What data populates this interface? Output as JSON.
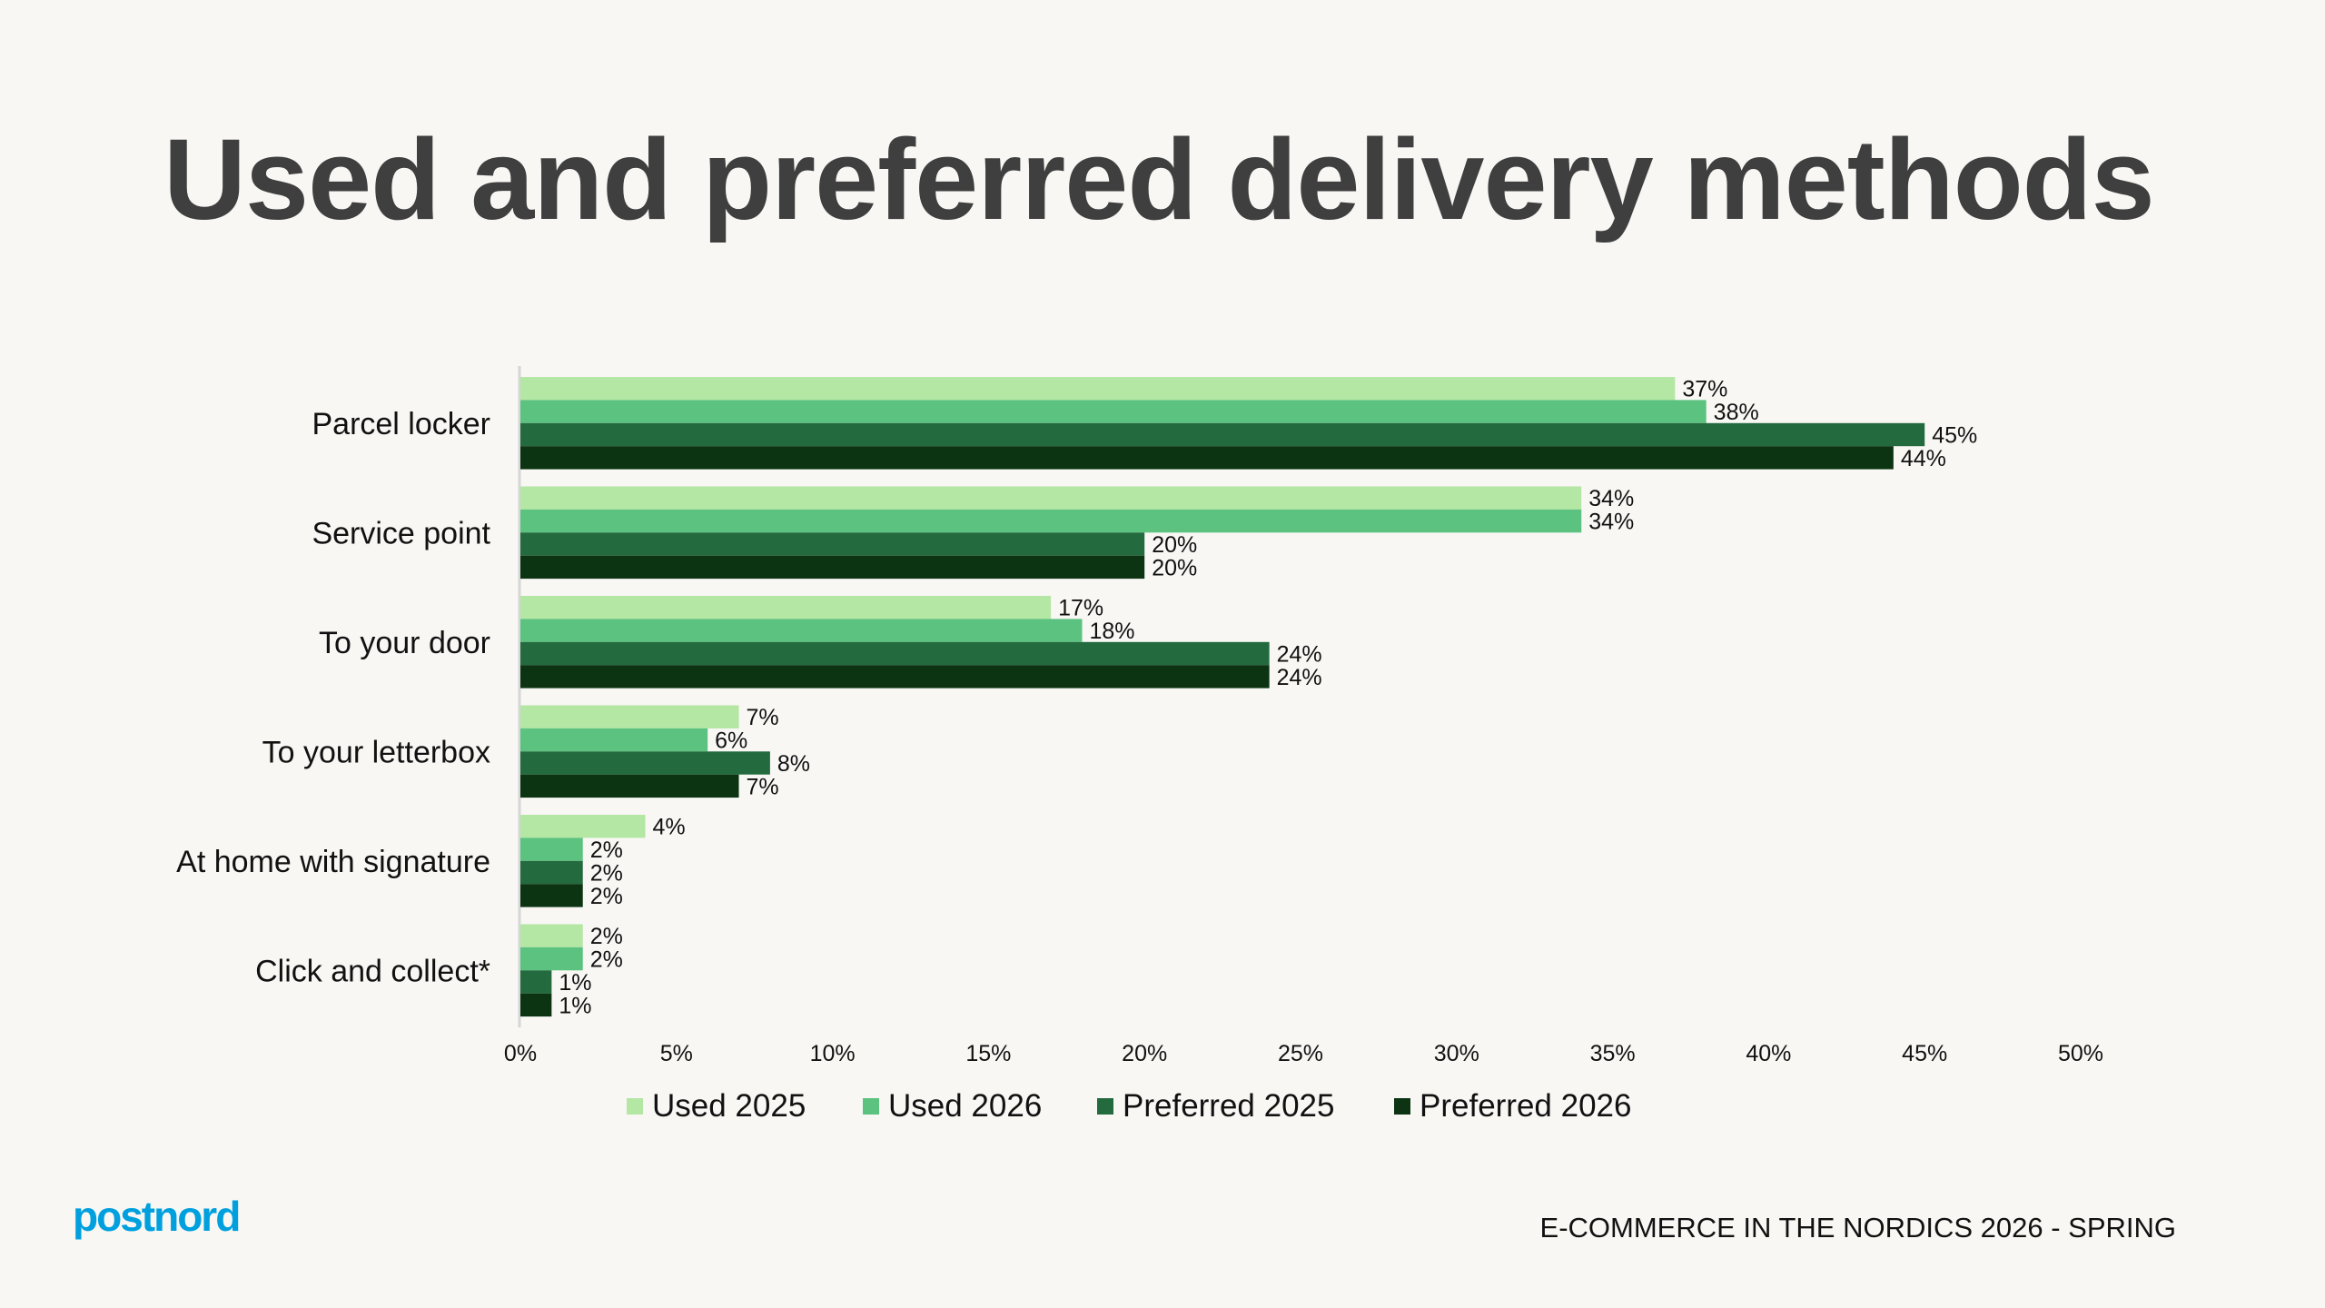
{
  "chart_data": {
    "type": "bar",
    "orientation": "horizontal",
    "title": "Used and preferred delivery methods",
    "categories": [
      "Parcel locker",
      "Service point",
      "To your door",
      "To your letterbox",
      "At home with signature",
      "Click and collect*"
    ],
    "series": [
      {
        "name": "Used 2025",
        "color": "#b4e6a4",
        "values": [
          37,
          34,
          17,
          7,
          4,
          2
        ]
      },
      {
        "name": "Used 2026",
        "color": "#5cc280",
        "values": [
          38,
          34,
          18,
          6,
          2,
          2
        ]
      },
      {
        "name": "Preferred 2025",
        "color": "#236a3f",
        "values": [
          45,
          20,
          24,
          8,
          2,
          1
        ]
      },
      {
        "name": "Preferred 2026",
        "color": "#0c3413",
        "values": [
          44,
          20,
          24,
          7,
          2,
          1
        ]
      }
    ],
    "xlim": [
      0,
      50
    ],
    "xticks": [
      "0%",
      "5%",
      "10%",
      "15%",
      "20%",
      "25%",
      "30%",
      "35%",
      "40%",
      "45%",
      "50%"
    ],
    "value_suffix": "%",
    "grid": false,
    "legend_position": "bottom"
  },
  "brand": {
    "logo": "postnord",
    "color": "#00a0df"
  },
  "footer": "E-COMMERCE IN THE NORDICS 2026 - SPRING"
}
